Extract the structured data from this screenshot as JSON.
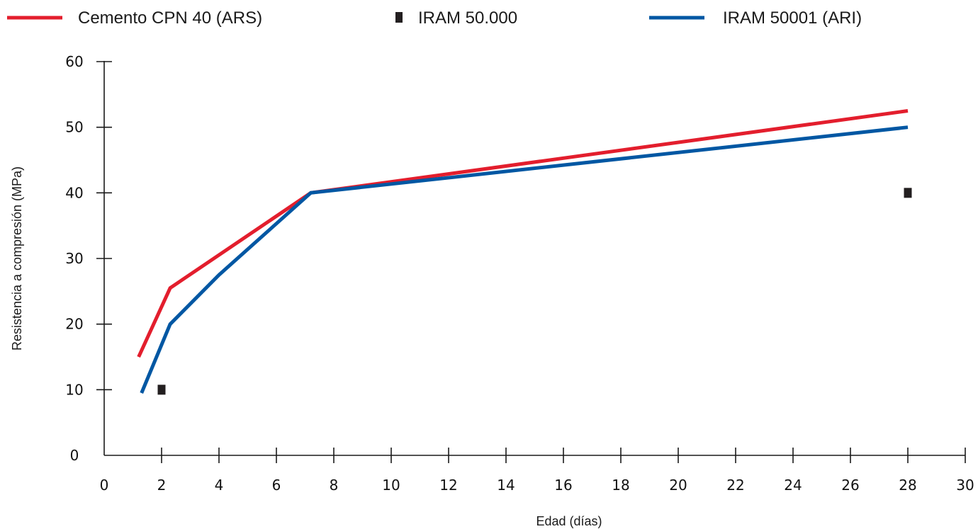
{
  "chart_data": {
    "type": "line",
    "title": "",
    "xlabel": "Edad (días)",
    "ylabel": "Resistencia a compresión (MPa)",
    "xlim": [
      0,
      30
    ],
    "ylim": [
      0,
      60
    ],
    "xticks": [
      0,
      2,
      4,
      6,
      8,
      10,
      12,
      14,
      16,
      18,
      20,
      22,
      24,
      26,
      28,
      30
    ],
    "yticks": [
      0,
      10,
      20,
      30,
      40,
      50,
      60
    ],
    "grid": false,
    "legend_position": "top",
    "series": [
      {
        "name": "Cemento CPN 40 (ARS)",
        "kind": "line",
        "color": "#e31e2d",
        "x": [
          1.2,
          2.3,
          7.2,
          28
        ],
        "y": [
          15,
          25.5,
          40,
          52.5
        ]
      },
      {
        "name": "IRAM 50.000",
        "kind": "marker",
        "marker": "square",
        "color": "#231f20",
        "x": [
          2,
          28
        ],
        "y": [
          10,
          40
        ]
      },
      {
        "name": "IRAM 50001 (ARI)",
        "kind": "line",
        "color": "#0057a3",
        "x": [
          1.3,
          2.3,
          4,
          7.2,
          28
        ],
        "y": [
          9.5,
          20,
          27.5,
          40,
          50
        ]
      }
    ]
  }
}
